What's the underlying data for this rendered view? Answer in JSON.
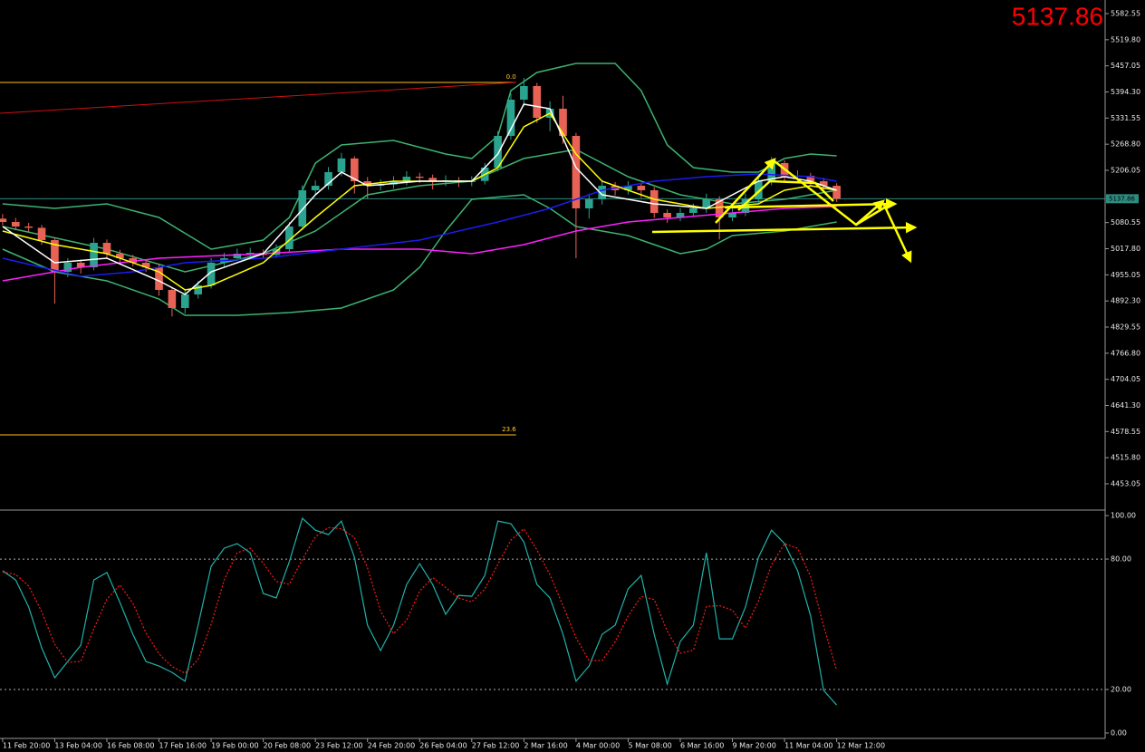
{
  "chart_data": [
    {
      "type": "candlestick",
      "categories": [
        "11 Feb 20:00",
        null,
        null,
        null,
        "13 Feb 04:00",
        null,
        null,
        null,
        "16 Feb 08:00",
        null,
        null,
        null,
        "17 Feb 16:00",
        null,
        null,
        null,
        "19 Feb 00:00",
        null,
        null,
        null,
        "20 Feb 08:00",
        null,
        null,
        null,
        "23 Feb 12:00",
        null,
        null,
        null,
        "24 Feb 20:00",
        null,
        null,
        null,
        "26 Feb 04:00",
        null,
        null,
        null,
        "27 Feb 12:00",
        null,
        null,
        null,
        "2 Mar 16:00",
        null,
        null,
        null,
        "4 Mar 00:00",
        null,
        null,
        null,
        "5 Mar 08:00",
        null,
        null,
        null,
        "6 Mar 16:00",
        null,
        null,
        null,
        "9 Mar 20:00",
        null,
        null,
        null,
        "11 Mar 04:00",
        null,
        null,
        null,
        "12 Mar 12:00"
      ],
      "open": [
        5090.0,
        5082.0,
        5071.1,
        5068.0,
        5038.5,
        4962.3,
        4984.1,
        4973.2,
        5031.9,
        5005.8,
        4994.9,
        4984.1,
        4973.2,
        4918.8,
        4875.3,
        4907.9,
        4929.7,
        4984.1,
        4994.9,
        5005.8,
        5008.0,
        5003.0,
        5016.7,
        5071.1,
        5158.2,
        5169.0,
        5201.7,
        5234.6,
        5179.9,
        5169.0,
        5172.0,
        5179.9,
        5190.8,
        5188.0,
        5179.9,
        5182.0,
        5178.0,
        5180.5,
        5212.6,
        5288.8,
        5375.8,
        5408.5,
        5332.3,
        5354.0,
        5288.8,
        5114.7,
        5136.4,
        5169.0,
        5158.2,
        5169.0,
        5158.2,
        5103.8,
        5092.9,
        5103.8,
        5114.7,
        5136.4,
        5092.9,
        5103.8,
        5136.4,
        5179.9,
        5223.5,
        5190.8,
        5193.0,
        5179.9,
        5169.0
      ],
      "high": [
        5101,
        5092,
        5080,
        5075,
        5045,
        4995,
        4992,
        5044,
        5040,
        5015,
        5003,
        4992,
        4981,
        4926,
        4918,
        4940,
        4995,
        5008,
        5018,
        5020,
        5016,
        5028,
        5082,
        5170,
        5182,
        5214,
        5248,
        5240,
        5190,
        5184,
        5192,
        5204,
        5200,
        5196,
        5194,
        5190,
        5192,
        5224,
        5300,
        5390,
        5428,
        5416,
        5372,
        5385,
        5296,
        5150,
        5182,
        5178,
        5180,
        5176,
        5166,
        5112,
        5115,
        5126,
        5150,
        5144,
        5116,
        5150,
        5192,
        5238,
        5230,
        5206,
        5200,
        5188,
        5175
      ],
      "low": [
        5074,
        5062,
        5058,
        5027,
        4886,
        4950,
        4958,
        4966,
        4996,
        4985,
        4975,
        4962,
        4905,
        4855,
        4862,
        4898,
        4922,
        4975,
        4988,
        4996,
        4994,
        4996,
        5010,
        5062,
        5146,
        5160,
        5192,
        5150,
        5138,
        5158,
        5162,
        5170,
        5176,
        5160,
        5168,
        5166,
        5168,
        5172,
        5204,
        5280,
        5360,
        5320,
        5300,
        5270,
        4995,
        5090,
        5124,
        5146,
        5148,
        5140,
        5092,
        5080,
        5084,
        5094,
        5104,
        5040,
        5084,
        5096,
        5128,
        5170,
        5180,
        5180,
        5168,
        5156,
        5130
      ],
      "close": [
        5082.0,
        5071.1,
        5068.0,
        5038.5,
        4962.3,
        4984.1,
        4973.2,
        5031.9,
        5005.8,
        4994.9,
        4984.1,
        4973.2,
        4918.8,
        4875.3,
        4907.9,
        4929.7,
        4984.1,
        4994.9,
        5005.8,
        5008.0,
        5003.0,
        5016.7,
        5071.1,
        5158.2,
        5169.0,
        5201.7,
        5234.6,
        5179.9,
        5169.0,
        5172.0,
        5179.9,
        5190.8,
        5188.0,
        5179.9,
        5182.0,
        5178.0,
        5180.5,
        5212.6,
        5288.8,
        5375.8,
        5408.5,
        5332.3,
        5354.0,
        5288.8,
        5114.7,
        5136.4,
        5169.0,
        5158.2,
        5169.0,
        5158.2,
        5103.8,
        5092.9,
        5103.8,
        5114.7,
        5136.4,
        5092.9,
        5103.8,
        5136.4,
        5179.9,
        5223.5,
        5190.8,
        5193.0,
        5179.9,
        5169.0,
        5137.86
      ],
      "up_color": "#2aa38f",
      "down_color": "#e86256",
      "xlim": [
        -0.2,
        84.6
      ],
      "ylim": [
        4392.1,
        5615.2
      ],
      "yticks": [
        {
          "value": 5582.55,
          "label": "5582.55"
        },
        {
          "value": 5519.8,
          "label": "5519.80"
        },
        {
          "value": 5457.05,
          "label": "5457.05"
        },
        {
          "value": 5394.3,
          "label": "5394.30"
        },
        {
          "value": 5331.55,
          "label": "5331.55"
        },
        {
          "value": 5268.8,
          "label": "5268.80"
        },
        {
          "value": 5206.05,
          "label": "5206.05"
        },
        {
          "value": 5080.55,
          "label": "5080.55"
        },
        {
          "value": 5017.8,
          "label": "5017.80"
        },
        {
          "value": 4955.05,
          "label": "4955.05"
        },
        {
          "value": 4892.3,
          "label": "4892.30"
        },
        {
          "value": 4829.55,
          "label": "4829.55"
        },
        {
          "value": 4766.8,
          "label": "4766.80"
        },
        {
          "value": 4704.05,
          "label": "4704.05"
        },
        {
          "value": 4641.3,
          "label": "4641.30"
        },
        {
          "value": 4578.55,
          "label": "4578.55"
        },
        {
          "value": 4515.8,
          "label": "4515.80"
        },
        {
          "value": 4453.05,
          "label": "4453.05"
        }
      ],
      "last_price": 5137.86,
      "last_price_color": "#2e8b80",
      "fibo": {
        "color": "#ffc020",
        "x": [
          -0.2,
          39.4
        ],
        "levels": [
          {
            "value": 5417.2,
            "label": "0.0"
          },
          {
            "value": 4570.6,
            "label": "23.6"
          }
        ]
      },
      "trendline": {
        "color": "#d01010",
        "x": [
          -0.2,
          39.4
        ],
        "values": [
          5343.2,
          5417.2
        ]
      },
      "lines": [
        {
          "color": "#3cb371",
          "x": [
            0,
            4,
            8,
            12,
            16,
            20,
            22,
            24,
            26,
            30,
            34,
            36,
            38,
            39,
            41,
            44,
            47,
            49,
            51,
            53,
            56,
            58,
            60,
            62,
            64
          ],
          "values": [
            5125.5,
            5114.7,
            5125.5,
            5092.9,
            5016.7,
            5038.5,
            5092.9,
            5223.5,
            5267.0,
            5277.9,
            5245.2,
            5234.6,
            5288.8,
            5397.6,
            5441.1,
            5462.9,
            5462.9,
            5397.6,
            5267.0,
            5212.6,
            5201.7,
            5201.7,
            5234.6,
            5245.2,
            5240.9
          ]
        },
        {
          "color": "#3cb371",
          "x": [
            0,
            8,
            14,
            20,
            24,
            28,
            32,
            36,
            40,
            44,
            48,
            52,
            56,
            60,
            64
          ],
          "values": [
            5071.1,
            5016.7,
            4962.3,
            5005.8,
            5060.2,
            5147.3,
            5169.0,
            5179.9,
            5234.6,
            5256.1,
            5190.8,
            5147.3,
            5125.5,
            5136.4,
            5158.2
          ]
        },
        {
          "color": "#3cb371",
          "x": [
            0,
            4,
            8,
            12,
            14,
            18,
            22,
            26,
            30,
            32,
            34,
            36,
            40,
            42,
            44,
            48,
            50,
            52,
            54,
            56,
            60,
            64
          ],
          "values": [
            5016.7,
            4962.3,
            4940.6,
            4897.0,
            4857.8,
            4857.8,
            4864.4,
            4875.3,
            4918.8,
            4973.2,
            5060.2,
            5136.4,
            5147.3,
            5114.7,
            5071.1,
            5049.4,
            5027.6,
            5005.8,
            5016.7,
            5049.4,
            5060.2,
            5082.0
          ]
        },
        {
          "color": "#ff20ff",
          "x": [
            0,
            6,
            12,
            20,
            26,
            32,
            36,
            40,
            44,
            48,
            52,
            56,
            60,
            64
          ],
          "values": [
            4940.6,
            4973.2,
            4994.9,
            5005.8,
            5016.7,
            5016.7,
            5005.8,
            5027.6,
            5060.2,
            5082.0,
            5092.9,
            5103.8,
            5114.7,
            5119.0
          ]
        },
        {
          "color": "#1c1cf0",
          "x": [
            0,
            6,
            10,
            14,
            20,
            26,
            32,
            38,
            42,
            46,
            50,
            54,
            58,
            62,
            64
          ],
          "values": [
            4994.9,
            4951.4,
            4962.3,
            4984.1,
            4994.9,
            5016.7,
            5038.5,
            5082.0,
            5114.7,
            5158.2,
            5179.9,
            5190.8,
            5197.4,
            5190.8,
            5179.9
          ]
        },
        {
          "color": "#ffff00",
          "x": [
            0,
            4,
            8,
            12,
            14,
            16,
            20,
            24,
            27,
            30,
            36,
            38,
            40,
            42,
            44,
            46,
            50,
            54,
            58,
            60,
            62,
            64
          ],
          "values": [
            5060.2,
            5027.6,
            5005.8,
            4962.3,
            4918.8,
            4929.7,
            4984.1,
            5092.9,
            5169.0,
            5179.9,
            5179.9,
            5212.6,
            5310.5,
            5343.2,
            5245.2,
            5179.9,
            5136.4,
            5114.7,
            5125.5,
            5158.2,
            5169.0,
            5158.2
          ]
        },
        {
          "color": "#ffffff",
          "x": [
            0,
            4,
            8,
            12,
            14,
            16,
            20,
            24,
            26,
            28,
            32,
            36,
            38,
            40,
            42,
            44,
            46,
            50,
            54,
            58,
            60,
            62,
            64
          ],
          "values": [
            5071.1,
            4984.1,
            4994.9,
            4940.6,
            4907.9,
            4962.3,
            5005.8,
            5147.3,
            5201.7,
            5169.0,
            5179.9,
            5179.9,
            5245.2,
            5364.9,
            5354.0,
            5212.6,
            5147.3,
            5125.5,
            5114.7,
            5179.9,
            5190.8,
            5179.9,
            5158.2
          ]
        }
      ]
    },
    {
      "type": "line",
      "xlim": [
        -0.2,
        84.6
      ],
      "ylim": [
        -2.5,
        101.7
      ],
      "yticks": [
        {
          "value": 100,
          "label": "100.00"
        },
        {
          "value": 80,
          "label": "80.00"
        },
        {
          "value": 20,
          "label": "20.00"
        },
        {
          "value": 0,
          "label": "0.00"
        }
      ],
      "levels": [
        80,
        20
      ],
      "series": [
        {
          "color": "#20b2aa",
          "style": "solid",
          "values": [
            74.6,
            70.4,
            57.9,
            39.2,
            25.4,
            32.9,
            40.4,
            70.4,
            73.8,
            60.0,
            45.4,
            32.9,
            30.8,
            27.9,
            23.8,
            49.6,
            76.7,
            85.0,
            87.1,
            82.9,
            64.2,
            62.1,
            78.8,
            98.8,
            93.3,
            91.3,
            97.5,
            80.8,
            49.6,
            37.9,
            49.6,
            68.3,
            77.9,
            68.3,
            54.6,
            63.3,
            62.9,
            72.5,
            97.5,
            96.3,
            87.9,
            68.3,
            62.1,
            45.4,
            23.8,
            30.8,
            45.4,
            49.6,
            66.3,
            72.5,
            45.4,
            22.5,
            42.1,
            49.6,
            82.9,
            43.3,
            43.3,
            57.9,
            80.8,
            93.3,
            87.1,
            74.6,
            53.8,
            19.6,
            12.9
          ]
        },
        {
          "color": "#ff1a1a",
          "style": "dotted",
          "values": [
            74.0,
            73.0,
            67.6,
            55.8,
            40.8,
            32.5,
            32.9,
            47.9,
            61.5,
            68.1,
            59.7,
            46.1,
            36.4,
            30.5,
            27.5,
            33.8,
            50.0,
            70.4,
            82.9,
            85.0,
            78.1,
            69.7,
            68.4,
            79.9,
            90.3,
            94.5,
            94.0,
            89.9,
            76.0,
            56.1,
            45.7,
            51.9,
            65.3,
            71.5,
            66.9,
            62.1,
            60.3,
            66.2,
            77.6,
            88.8,
            93.9,
            84.2,
            72.8,
            58.6,
            43.8,
            33.3,
            33.3,
            41.9,
            53.8,
            62.8,
            61.4,
            46.8,
            36.7,
            38.1,
            58.2,
            58.6,
            56.5,
            48.2,
            60.7,
            77.3,
            87.1,
            85.0,
            71.8,
            49.3,
            28.8
          ]
        }
      ]
    }
  ]
}
